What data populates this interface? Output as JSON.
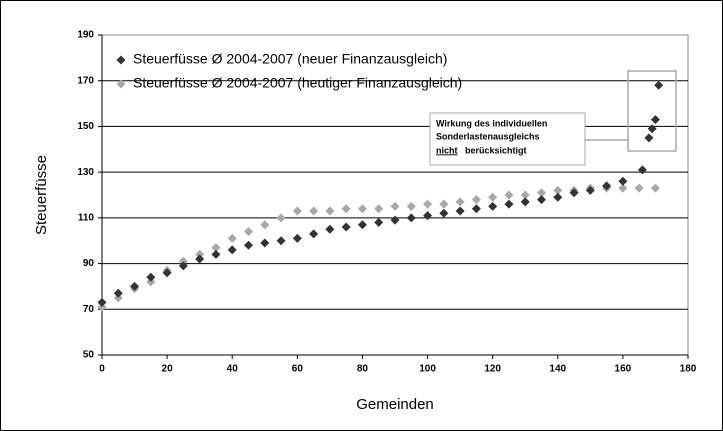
{
  "chart_data": {
    "type": "scatter",
    "y_label": "Steuerfüsse",
    "x_label": "Gemeinden",
    "xlim": [
      0,
      180
    ],
    "xticks": [
      0,
      20,
      40,
      60,
      80,
      100,
      120,
      140,
      160,
      180
    ],
    "ylim": [
      50,
      190
    ],
    "yticks": [
      50,
      70,
      90,
      110,
      130,
      150,
      170,
      190
    ],
    "grid": true,
    "legend": "top-left",
    "series": [
      {
        "name": "Steuerfüsse Ø 2004-2007 (neuer Finanzausgleich)",
        "color": "#333333",
        "x": [
          0,
          5,
          10,
          15,
          20,
          25,
          30,
          35,
          40,
          45,
          50,
          55,
          60,
          65,
          70,
          75,
          80,
          85,
          90,
          95,
          100,
          105,
          110,
          115,
          120,
          125,
          130,
          135,
          140,
          145,
          150,
          155,
          160,
          166,
          168,
          169,
          170,
          171
        ],
        "values": [
          73,
          77,
          80,
          84,
          86,
          89,
          92,
          94,
          96,
          98,
          99,
          100,
          101,
          103,
          105,
          106,
          107,
          108,
          109,
          110,
          111,
          112,
          113,
          114,
          115,
          116,
          117,
          118,
          119,
          121,
          122,
          124,
          126,
          131,
          145,
          149,
          153,
          168
        ]
      },
      {
        "name": "Steuerfüsse Ø 2004-2007 (heutiger Finanzausgleich)",
        "color": "#a8a8a8",
        "x": [
          0,
          5,
          10,
          15,
          20,
          25,
          30,
          35,
          40,
          45,
          50,
          55,
          60,
          65,
          70,
          75,
          80,
          85,
          90,
          95,
          100,
          105,
          110,
          115,
          120,
          125,
          130,
          135,
          140,
          145,
          150,
          155,
          160,
          165,
          170
        ],
        "values": [
          71,
          75,
          79,
          82,
          87,
          91,
          94,
          97,
          101,
          104,
          107,
          110,
          113,
          113,
          113,
          114,
          114,
          114,
          115,
          115,
          116,
          116,
          117,
          118,
          119,
          120,
          120,
          121,
          122,
          122,
          123,
          123,
          123,
          123,
          123
        ]
      }
    ],
    "annotation": [
      "Wirkung des individuellen",
      "Sonderlastenausgleichs",
      "nicht",
      "berücksichtigt"
    ]
  }
}
